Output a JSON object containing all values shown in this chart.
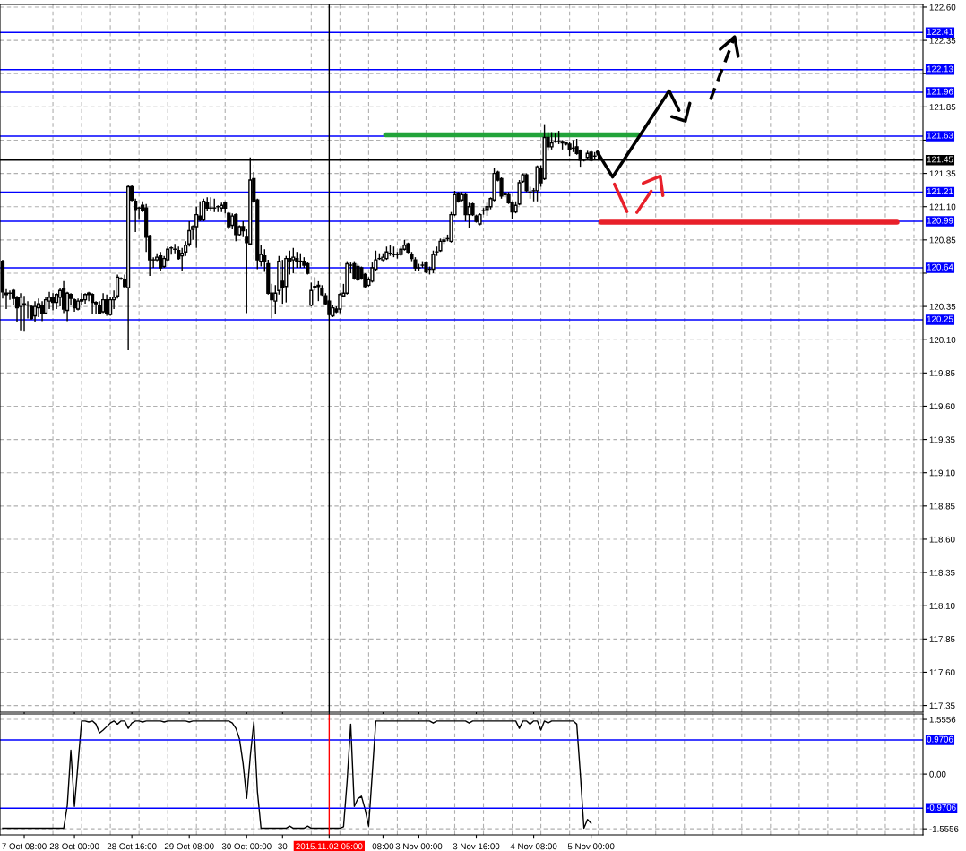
{
  "chart_data": [
    {
      "type": "candlestick",
      "categories": [
        null,
        null,
        null,
        null,
        null,
        null,
        "7 Oct 08:00",
        null,
        null,
        null,
        null,
        null,
        null,
        null,
        null,
        null,
        null,
        null,
        null,
        null,
        "28 Oct 00:00",
        null,
        null,
        null,
        null,
        null,
        null,
        null,
        null,
        null,
        null,
        null,
        null,
        null,
        null,
        null,
        "28 Oct 16:00",
        null,
        null,
        null,
        null,
        null,
        null,
        null,
        null,
        null,
        null,
        null,
        null,
        null,
        null,
        null,
        "29 Oct 08:00",
        null,
        null,
        null,
        null,
        null,
        null,
        null,
        null,
        null,
        null,
        null,
        null,
        null,
        null,
        null,
        "30 Oct 00:00",
        null,
        null,
        null,
        null,
        null,
        null,
        null,
        null,
        null,
        "30",
        null,
        null,
        null,
        null,
        null,
        null,
        null,
        null,
        null,
        null,
        null,
        null,
        "2015.11.02 05:00",
        null,
        null,
        null,
        null,
        null,
        null,
        null,
        null,
        null,
        null,
        null,
        null,
        null,
        null,
        "08:00",
        null,
        null,
        null,
        null,
        null,
        null,
        null,
        null,
        null,
        "3 Nov 00:00",
        null,
        null,
        null,
        null,
        null,
        null,
        null,
        null,
        null,
        null,
        null,
        null,
        null,
        null,
        null,
        "3 Nov 16:00",
        null,
        null,
        null,
        null,
        null,
        null,
        null,
        null,
        null,
        null,
        null,
        null,
        null,
        null,
        null,
        "4 Nov 08:00",
        null,
        null,
        null,
        null,
        null,
        null,
        null,
        null,
        null,
        null,
        null,
        null,
        null,
        null,
        null,
        "5 Nov 00:00",
        null,
        null,
        null,
        null,
        null,
        null,
        null,
        null,
        null,
        null,
        null,
        null,
        null,
        null,
        null,
        null,
        null,
        null,
        null,
        null,
        null,
        null,
        null,
        null,
        null,
        null,
        null,
        null,
        null,
        null,
        null,
        null,
        null,
        null,
        null,
        null,
        null,
        null,
        null,
        null,
        null,
        null,
        null,
        null,
        null,
        null,
        null,
        null,
        null,
        null,
        null,
        null,
        null,
        null,
        null,
        null,
        null,
        null,
        null,
        null,
        null,
        null,
        null,
        null,
        null,
        null,
        null,
        null,
        null,
        null,
        null,
        null,
        null,
        null,
        null,
        null,
        null,
        null,
        null,
        null,
        null,
        null,
        null,
        null,
        null,
        null,
        null,
        null,
        null,
        null,
        null,
        null
      ],
      "ohlc": [
        [
          120.69,
          120.7,
          120.41,
          120.46
        ],
        [
          120.45,
          120.48,
          120.33,
          120.44
        ],
        [
          120.45,
          120.47,
          120.4,
          120.45
        ],
        [
          120.47,
          120.48,
          120.36,
          120.41
        ],
        [
          120.42,
          120.43,
          120.23,
          120.34
        ],
        [
          120.35,
          120.45,
          120.17,
          120.42
        ],
        [
          120.37,
          120.43,
          120.16,
          120.36
        ],
        [
          120.36,
          120.39,
          120.26,
          120.36
        ],
        [
          120.35,
          120.36,
          120.25,
          120.26
        ],
        [
          120.28,
          120.39,
          120.23,
          120.35
        ],
        [
          120.34,
          120.41,
          120.27,
          120.37
        ],
        [
          120.36,
          120.39,
          120.24,
          120.3
        ],
        [
          120.3,
          120.42,
          120.29,
          120.4
        ],
        [
          120.39,
          120.46,
          120.33,
          120.42
        ],
        [
          120.42,
          120.45,
          120.32,
          120.38
        ],
        [
          120.38,
          120.45,
          120.33,
          120.44
        ],
        [
          120.42,
          120.49,
          120.35,
          120.47
        ],
        [
          120.48,
          120.54,
          120.3,
          120.33
        ],
        [
          120.32,
          120.46,
          120.24,
          120.45
        ],
        [
          120.44,
          120.45,
          120.36,
          120.41
        ],
        [
          120.4,
          120.41,
          120.31,
          120.34
        ],
        [
          120.33,
          120.41,
          120.32,
          120.39
        ],
        [
          120.4,
          120.45,
          120.36,
          120.39
        ],
        [
          120.4,
          120.45,
          120.37,
          120.44
        ],
        [
          120.44,
          120.46,
          120.39,
          120.45
        ],
        [
          120.44,
          120.45,
          120.29,
          120.38
        ],
        [
          120.38,
          120.39,
          120.29,
          120.37
        ],
        [
          120.36,
          120.39,
          120.29,
          120.3
        ],
        [
          120.31,
          120.45,
          120.3,
          120.4
        ],
        [
          120.4,
          120.44,
          120.28,
          120.3
        ],
        [
          120.29,
          120.42,
          120.28,
          120.4
        ],
        [
          120.4,
          120.47,
          120.33,
          120.42
        ],
        [
          120.43,
          120.59,
          120.41,
          120.57
        ],
        [
          120.56,
          120.57,
          120.55,
          120.56
        ],
        [
          120.55,
          120.59,
          120.49,
          120.5
        ],
        [
          120.49,
          121.26,
          120.02,
          121.25
        ],
        [
          121.25,
          121.26,
          121.14,
          121.15
        ],
        [
          121.14,
          121.16,
          120.91,
          121.08
        ],
        [
          121.09,
          121.1,
          121.0,
          121.09
        ],
        [
          121.11,
          121.14,
          121.06,
          121.07
        ],
        [
          121.09,
          121.12,
          120.76,
          120.87
        ],
        [
          120.88,
          120.89,
          120.58,
          120.7
        ],
        [
          120.7,
          120.72,
          120.64,
          120.7
        ],
        [
          120.7,
          120.75,
          120.69,
          120.72
        ],
        [
          120.73,
          120.76,
          120.62,
          120.64
        ],
        [
          120.65,
          120.73,
          120.64,
          120.71
        ],
        [
          120.7,
          120.8,
          120.69,
          120.78
        ],
        [
          120.79,
          120.8,
          120.74,
          120.79
        ],
        [
          120.78,
          120.82,
          120.75,
          120.78
        ],
        [
          120.77,
          120.8,
          120.7,
          120.71
        ],
        [
          120.73,
          120.79,
          120.62,
          120.75
        ],
        [
          120.76,
          120.84,
          120.73,
          120.81
        ],
        [
          120.82,
          120.99,
          120.8,
          120.92
        ],
        [
          120.93,
          120.96,
          120.85,
          120.95
        ],
        [
          120.95,
          121.1,
          120.79,
          121.04
        ],
        [
          121.03,
          121.14,
          120.99,
          121.0
        ],
        [
          121.0,
          121.16,
          120.99,
          121.14
        ],
        [
          121.13,
          121.17,
          121.07,
          121.09
        ],
        [
          121.09,
          121.17,
          121.07,
          121.09
        ],
        [
          121.09,
          121.16,
          121.06,
          121.09
        ],
        [
          121.1,
          121.11,
          121.06,
          121.1
        ],
        [
          121.09,
          121.13,
          121.06,
          121.11
        ],
        [
          121.13,
          121.14,
          121.05,
          121.09
        ],
        [
          121.05,
          121.06,
          120.93,
          120.95
        ],
        [
          120.96,
          121.05,
          120.93,
          121.03
        ],
        [
          121.04,
          121.05,
          120.84,
          120.89
        ],
        [
          120.89,
          120.96,
          120.88,
          120.95
        ],
        [
          120.95,
          120.99,
          120.87,
          120.92
        ],
        [
          120.87,
          120.93,
          120.3,
          120.83
        ],
        [
          120.82,
          121.47,
          120.81,
          121.3
        ],
        [
          121.31,
          121.36,
          121.13,
          121.14
        ],
        [
          121.15,
          121.16,
          120.63,
          120.7
        ],
        [
          120.69,
          120.81,
          120.65,
          120.74
        ],
        [
          120.73,
          120.78,
          120.61,
          120.69
        ],
        [
          120.67,
          120.7,
          120.44,
          120.45
        ],
        [
          120.45,
          120.52,
          120.26,
          120.4
        ],
        [
          120.39,
          120.51,
          120.29,
          120.45
        ],
        [
          120.47,
          120.73,
          120.44,
          120.69
        ],
        [
          120.54,
          120.7,
          120.37,
          120.49
        ],
        [
          120.5,
          120.73,
          120.38,
          120.71
        ],
        [
          120.71,
          120.77,
          120.59,
          120.69
        ],
        [
          120.7,
          120.79,
          120.6,
          120.72
        ],
        [
          120.71,
          120.76,
          120.64,
          120.69
        ],
        [
          120.69,
          120.75,
          120.64,
          120.69
        ],
        [
          120.69,
          120.72,
          120.64,
          120.66
        ],
        [
          120.67,
          120.68,
          120.59,
          120.6
        ],
        [
          120.36,
          120.53,
          120.35,
          120.47
        ],
        [
          120.49,
          120.57,
          120.47,
          120.5
        ],
        [
          120.5,
          120.54,
          120.39,
          120.51
        ],
        [
          120.48,
          120.51,
          120.43,
          120.44
        ],
        [
          120.43,
          120.45,
          120.36,
          120.37
        ],
        [
          120.39,
          120.4,
          120.28,
          120.29
        ],
        [
          120.28,
          120.36,
          120.27,
          120.34
        ],
        [
          120.33,
          120.35,
          120.3,
          120.31
        ],
        [
          120.33,
          120.45,
          120.3,
          120.44
        ],
        [
          120.43,
          120.52,
          120.42,
          120.45
        ],
        [
          120.45,
          120.69,
          120.44,
          120.67
        ],
        [
          120.66,
          120.68,
          120.6,
          120.66
        ],
        [
          120.67,
          120.69,
          120.55,
          120.56
        ],
        [
          120.65,
          120.67,
          120.54,
          120.55
        ],
        [
          120.64,
          120.65,
          120.55,
          120.56
        ],
        [
          120.59,
          120.6,
          120.49,
          120.5
        ],
        [
          120.51,
          120.57,
          120.5,
          120.55
        ],
        [
          120.54,
          120.68,
          120.53,
          120.64
        ],
        [
          120.63,
          120.77,
          120.62,
          120.7
        ],
        [
          120.71,
          120.75,
          120.7,
          120.71
        ],
        [
          120.7,
          120.75,
          120.69,
          120.72
        ],
        [
          120.71,
          120.8,
          120.7,
          120.76
        ],
        [
          120.75,
          120.81,
          120.73,
          120.75
        ],
        [
          120.74,
          120.8,
          120.72,
          120.74
        ],
        [
          120.74,
          120.76,
          120.71,
          120.74
        ],
        [
          120.74,
          120.8,
          120.73,
          120.78
        ],
        [
          120.78,
          120.85,
          120.77,
          120.81
        ],
        [
          120.82,
          120.83,
          120.75,
          120.76
        ],
        [
          120.74,
          120.76,
          120.69,
          120.71
        ],
        [
          120.7,
          120.72,
          120.62,
          120.64
        ],
        [
          120.64,
          120.67,
          120.62,
          120.64
        ],
        [
          120.66,
          120.69,
          120.64,
          120.66
        ],
        [
          120.68,
          120.69,
          120.6,
          120.61
        ],
        [
          120.63,
          120.65,
          120.59,
          120.63
        ],
        [
          120.63,
          120.77,
          120.6,
          120.74
        ],
        [
          120.76,
          120.8,
          120.73,
          120.76
        ],
        [
          120.77,
          120.86,
          120.76,
          120.84
        ],
        [
          120.84,
          120.87,
          120.82,
          120.85
        ],
        [
          120.86,
          120.89,
          120.84,
          120.86
        ],
        [
          120.84,
          121.06,
          120.83,
          121.04
        ],
        [
          121.04,
          121.22,
          121.03,
          121.19
        ],
        [
          121.2,
          121.21,
          121.13,
          121.14
        ],
        [
          121.15,
          121.21,
          121.14,
          121.19
        ],
        [
          121.19,
          121.2,
          120.99,
          121.04
        ],
        [
          121.04,
          121.13,
          120.94,
          121.1
        ],
        [
          121.12,
          121.13,
          121.03,
          121.04
        ],
        [
          121.03,
          121.04,
          120.98,
          120.99
        ],
        [
          120.97,
          121.05,
          120.96,
          121.04
        ],
        [
          121.07,
          121.09,
          121.04,
          121.07
        ],
        [
          121.08,
          121.13,
          121.03,
          121.1
        ],
        [
          121.1,
          121.17,
          121.08,
          121.16
        ],
        [
          121.15,
          121.39,
          121.14,
          121.35
        ],
        [
          121.36,
          121.37,
          121.29,
          121.3
        ],
        [
          121.31,
          121.32,
          121.16,
          121.18
        ],
        [
          121.19,
          121.21,
          121.17,
          121.2
        ],
        [
          121.19,
          121.21,
          121.12,
          121.13
        ],
        [
          121.13,
          121.14,
          121.01,
          121.06
        ],
        [
          121.06,
          121.14,
          121.05,
          121.11
        ],
        [
          121.12,
          121.3,
          121.11,
          121.28
        ],
        [
          121.29,
          121.35,
          121.28,
          121.34
        ],
        [
          121.34,
          121.35,
          121.21,
          121.22
        ],
        [
          121.21,
          121.25,
          121.16,
          121.21
        ],
        [
          121.22,
          121.24,
          121.14,
          121.22
        ],
        [
          121.22,
          121.41,
          121.14,
          121.4
        ],
        [
          121.39,
          121.41,
          121.25,
          121.28
        ],
        [
          121.31,
          121.72,
          121.3,
          121.62
        ],
        [
          121.62,
          121.66,
          121.52,
          121.55
        ],
        [
          121.55,
          121.66,
          121.53,
          121.58
        ],
        [
          121.59,
          121.65,
          121.58,
          121.59
        ],
        [
          121.59,
          121.67,
          121.57,
          121.59
        ],
        [
          121.58,
          121.6,
          121.53,
          121.59
        ],
        [
          121.57,
          121.59,
          121.56,
          121.58
        ],
        [
          121.57,
          121.59,
          121.48,
          121.53
        ],
        [
          121.54,
          121.6,
          121.51,
          121.54
        ],
        [
          121.55,
          121.61,
          121.49,
          121.5
        ],
        [
          121.52,
          121.53,
          121.4,
          121.45
        ],
        [
          121.45,
          121.46,
          121.44,
          121.45
        ],
        [
          121.47,
          121.52,
          121.45,
          121.5
        ],
        [
          121.51,
          121.52,
          121.44,
          121.45
        ],
        [
          121.48,
          121.51,
          121.46,
          121.48
        ],
        [
          121.51,
          121.52,
          121.46,
          121.49
        ],
        null,
        null,
        null,
        null,
        null,
        null,
        null,
        null,
        null,
        null,
        null,
        null,
        null,
        null,
        null,
        null,
        null,
        null,
        null,
        null,
        null,
        null,
        null,
        null,
        null,
        null,
        null,
        null,
        null,
        null,
        null,
        null,
        null,
        null,
        null,
        null,
        null,
        null,
        null,
        null,
        null,
        null,
        null,
        null,
        null,
        null,
        null,
        null,
        null,
        null,
        null,
        null,
        null,
        null,
        null,
        null,
        null,
        null,
        null,
        null,
        null,
        null,
        null,
        null,
        null,
        null,
        null,
        null,
        null,
        null,
        null,
        null,
        null,
        null,
        null,
        null,
        null,
        null,
        null,
        null,
        null,
        null,
        null,
        null,
        null,
        null,
        null,
        null,
        null,
        null
      ],
      "ylim": [
        117.3,
        122.62
      ],
      "yticks": [
        {
          "value": 122.6,
          "label": "122.60"
        },
        122.35,
        {
          "value": 122.1,
          "label": null
        },
        121.85,
        {
          "value": 121.6,
          "label": null
        },
        121.35,
        {
          "value": 121.1,
          "label": "121.10"
        },
        120.85,
        {
          "value": 120.6,
          "label": null
        },
        120.35,
        {
          "value": 120.1,
          "label": "120.10"
        },
        119.85,
        {
          "value": 119.6,
          "label": "119.60"
        },
        119.35,
        {
          "value": 119.1,
          "label": "119.10"
        },
        118.85,
        {
          "value": 118.6,
          "label": "118.60"
        },
        118.35,
        {
          "value": 118.1,
          "label": "118.10"
        },
        117.85,
        {
          "value": 117.6,
          "label": "117.60"
        },
        117.35
      ],
      "grid": true,
      "tick_labels": "y",
      "ref_lines": [
        {
          "axis": "y",
          "value": 122.41,
          "label": "122.41",
          "color": "#0000ff"
        },
        {
          "axis": "y",
          "value": 122.13,
          "label": "122.13",
          "color": "#0000ff"
        },
        {
          "axis": "y",
          "value": 121.96,
          "label": "121.96",
          "color": "#0000ff"
        },
        {
          "axis": "y",
          "value": 121.63,
          "label": "121.63",
          "color": "#0000ff"
        },
        {
          "axis": "y",
          "value": 121.45,
          "label": "121.45",
          "color": "#000000"
        },
        {
          "axis": "y",
          "value": 121.21,
          "label": "121.21",
          "color": "#0000ff"
        },
        {
          "axis": "y",
          "value": 120.99,
          "label": "120.99",
          "color": "#0000ff"
        },
        {
          "axis": "y",
          "value": 120.64,
          "label": "120.64",
          "color": "#0000ff"
        },
        {
          "axis": "y",
          "value": 120.25,
          "label": "120.25",
          "color": "#0000ff"
        },
        {
          "axis": "x",
          "value": "2015.11.02 05:00",
          "color": "#000000"
        }
      ]
    },
    {
      "type": "line",
      "categories": [
        null,
        null,
        null,
        null,
        null,
        null,
        "7 Oct 08:00",
        null,
        null,
        null,
        null,
        null,
        null,
        null,
        null,
        null,
        null,
        null,
        null,
        null,
        "28 Oct 00:00",
        null,
        null,
        null,
        null,
        null,
        null,
        null,
        null,
        null,
        null,
        null,
        null,
        null,
        null,
        null,
        "28 Oct 16:00",
        null,
        null,
        null,
        null,
        null,
        null,
        null,
        null,
        null,
        null,
        null,
        null,
        null,
        null,
        null,
        "29 Oct 08:00",
        null,
        null,
        null,
        null,
        null,
        null,
        null,
        null,
        null,
        null,
        null,
        null,
        null,
        null,
        null,
        "30 Oct 00:00",
        null,
        null,
        null,
        null,
        null,
        null,
        null,
        null,
        null,
        "30",
        null,
        null,
        null,
        null,
        null,
        null,
        null,
        null,
        null,
        null,
        null,
        null,
        "2015.11.02 05:00",
        null,
        null,
        null,
        null,
        null,
        null,
        null,
        null,
        null,
        null,
        null,
        null,
        null,
        null,
        "08:00",
        null,
        null,
        null,
        null,
        null,
        null,
        null,
        null,
        null,
        "3 Nov 00:00",
        null,
        null,
        null,
        null,
        null,
        null,
        null,
        null,
        null,
        null,
        null,
        null,
        null,
        null,
        null,
        "3 Nov 16:00",
        null,
        null,
        null,
        null,
        null,
        null,
        null,
        null,
        null,
        null,
        null,
        null,
        null,
        null,
        null,
        "4 Nov 08:00",
        null,
        null,
        null,
        null,
        null,
        null,
        null,
        null,
        null,
        null,
        null,
        null,
        null,
        null,
        null,
        "5 Nov 00:00",
        null,
        null,
        null,
        null,
        null,
        null,
        null,
        null,
        null,
        null,
        null,
        null,
        null,
        null,
        null,
        null,
        null,
        null,
        null,
        null,
        null,
        null,
        null,
        null,
        null,
        null,
        null,
        null,
        null,
        null,
        null,
        null,
        null,
        null,
        null,
        null,
        null,
        null,
        null,
        null,
        null,
        null,
        null,
        null,
        null,
        null,
        null,
        null,
        null,
        null,
        null,
        null,
        null,
        null,
        null,
        null,
        null,
        null,
        null,
        null,
        null,
        null,
        null,
        null,
        null,
        null,
        null,
        null,
        null,
        null,
        null,
        null,
        null,
        null,
        null,
        null,
        null,
        null,
        null,
        null,
        null,
        null,
        null,
        null,
        null,
        null,
        null,
        null,
        null,
        null,
        null,
        null
      ],
      "series": [
        {
          "color": "#000000",
          "values": [
            -1.54,
            -1.54,
            -1.54,
            -1.54,
            -1.54,
            -1.54,
            -1.54,
            -1.54,
            -1.54,
            -1.54,
            -1.54,
            -1.54,
            -1.54,
            -1.54,
            -1.54,
            -1.54,
            -1.54,
            -1.54,
            -0.9,
            0.68,
            -0.92,
            0.3,
            1.51,
            1.51,
            1.48,
            1.51,
            1.42,
            1.17,
            1.25,
            1.35,
            1.45,
            1.51,
            1.42,
            1.51,
            1.51,
            1.3,
            1.45,
            1.51,
            1.51,
            1.48,
            1.51,
            1.51,
            1.51,
            1.51,
            1.51,
            1.48,
            1.51,
            1.51,
            1.51,
            1.51,
            1.51,
            1.51,
            1.48,
            1.51,
            1.51,
            1.51,
            1.51,
            1.51,
            1.51,
            1.51,
            1.51,
            1.51,
            1.51,
            1.51,
            1.45,
            1.3,
            1.0,
            0.3,
            -0.69,
            0.5,
            1.48,
            -0.5,
            -1.54,
            -1.54,
            -1.54,
            -1.54,
            -1.54,
            -1.54,
            -1.54,
            -1.54,
            -1.48,
            -1.54,
            -1.54,
            -1.54,
            -1.54,
            -1.48,
            -1.54,
            -1.54,
            -1.54,
            -1.54,
            -1.54,
            -1.54,
            -1.54,
            -1.54,
            -1.54,
            -1.5,
            -0.2,
            1.42,
            -0.92,
            -0.7,
            -0.63,
            -1.0,
            -1.48,
            0.0,
            1.51,
            1.51,
            1.51,
            1.51,
            1.51,
            1.51,
            1.51,
            1.51,
            1.51,
            1.51,
            1.51,
            1.51,
            1.51,
            1.51,
            1.51,
            1.51,
            1.45,
            1.51,
            1.51,
            1.51,
            1.51,
            1.51,
            1.51,
            1.51,
            1.51,
            1.51,
            1.45,
            1.51,
            1.51,
            1.51,
            1.51,
            1.51,
            1.51,
            1.51,
            1.51,
            1.51,
            1.51,
            1.51,
            1.51,
            1.51,
            1.3,
            1.51,
            1.51,
            1.42,
            1.51,
            1.51,
            1.25,
            1.51,
            1.45,
            1.51,
            1.51,
            1.51,
            1.51,
            1.51,
            1.51,
            1.51,
            1.42,
            0.0,
            -1.54,
            -1.29,
            -1.4,
            null,
            null,
            null,
            null,
            null,
            null,
            null,
            null,
            null,
            null,
            null,
            null,
            null,
            null,
            null,
            null,
            null,
            null,
            null,
            null,
            null,
            null,
            null,
            null,
            null,
            null,
            null,
            null,
            null,
            null,
            null,
            null,
            null,
            null,
            null,
            null,
            null,
            null,
            null,
            null,
            null,
            null,
            null,
            null,
            null,
            null,
            null,
            null,
            null,
            null,
            null,
            null,
            null,
            null,
            null,
            null,
            null,
            null,
            null,
            null,
            null,
            null,
            null,
            null,
            null,
            null,
            null,
            null,
            null,
            null,
            null,
            null,
            null,
            null,
            null,
            null,
            null,
            null,
            null,
            null,
            null,
            null,
            null,
            null,
            null,
            null,
            null,
            null,
            null,
            null,
            null,
            null
          ]
        }
      ],
      "ylim": [
        -1.73,
        1.71
      ],
      "yticks": [
        1.5556,
        {
          "value": 0,
          "label": "0.00"
        },
        -1.5556
      ],
      "grid": true,
      "ref_lines": [
        {
          "axis": "y",
          "value": 0.9706,
          "label": "0.9706",
          "color": "#0000ff"
        },
        {
          "axis": "y",
          "value": -0.9706,
          "label": "-0.9706",
          "color": "#0000ff"
        },
        {
          "axis": "x",
          "value": "2015.11.02 05:00",
          "color": "#ff0000"
        }
      ]
    }
  ]
}
